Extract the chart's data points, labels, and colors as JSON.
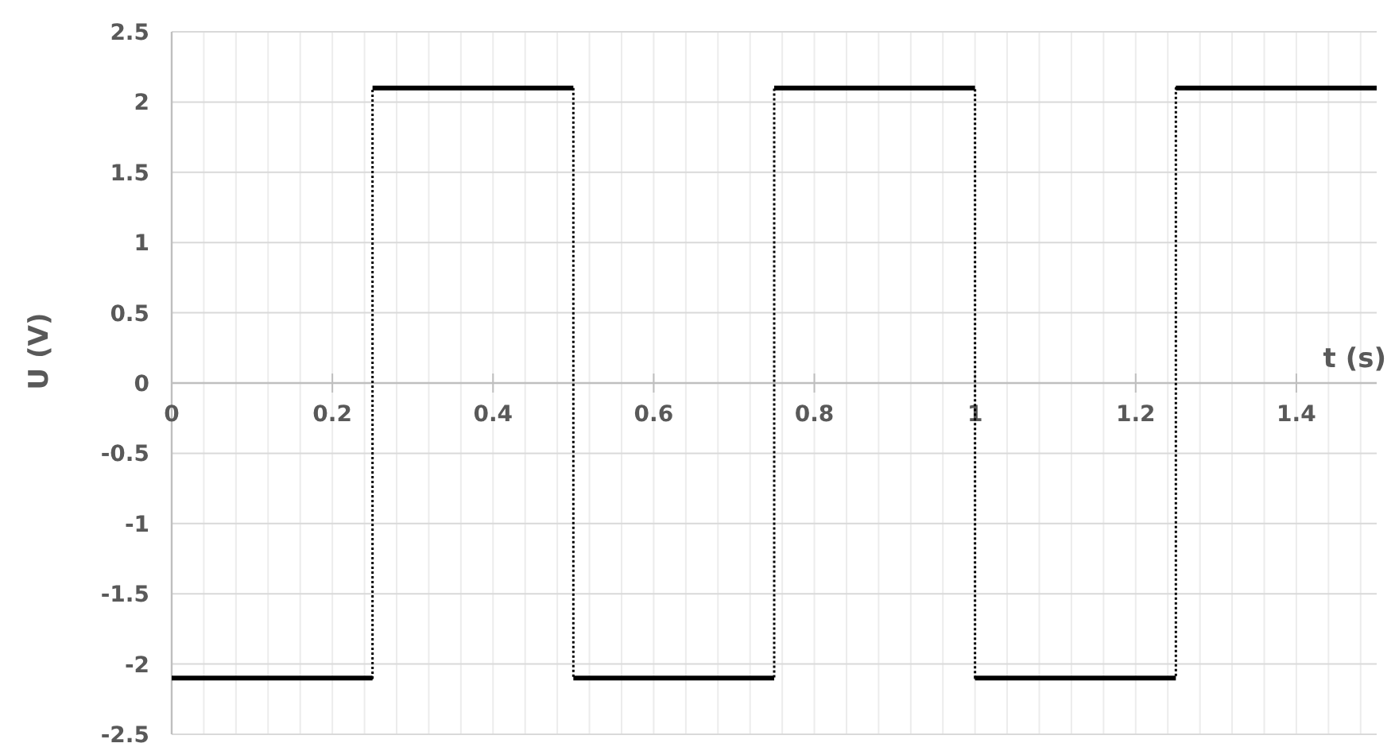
{
  "chart_data": {
    "type": "line",
    "xlabel": "t (s)",
    "ylabel": "U (V)",
    "xlim": [
      0,
      1.5
    ],
    "ylim": [
      -2.5,
      2.5
    ],
    "xticks": [
      0,
      {
        "value": 0.04,
        "label": null
      },
      {
        "value": 0.08,
        "label": null
      },
      {
        "value": 0.12,
        "label": null
      },
      {
        "value": 0.16,
        "label": null
      },
      0.2,
      {
        "value": 0.24,
        "label": null
      },
      {
        "value": 0.28,
        "label": null
      },
      {
        "value": 0.32,
        "label": null
      },
      {
        "value": 0.36,
        "label": null
      },
      0.4,
      {
        "value": 0.44,
        "label": null
      },
      {
        "value": 0.48,
        "label": null
      },
      {
        "value": 0.52,
        "label": null
      },
      {
        "value": 0.56,
        "label": null
      },
      0.6,
      {
        "value": 0.64,
        "label": null
      },
      {
        "value": 0.68,
        "label": null
      },
      {
        "value": 0.72,
        "label": null
      },
      {
        "value": 0.76,
        "label": null
      },
      0.8,
      {
        "value": 0.84,
        "label": null
      },
      {
        "value": 0.88,
        "label": null
      },
      {
        "value": 0.92,
        "label": null
      },
      {
        "value": 0.96,
        "label": null
      },
      1,
      {
        "value": 1.04,
        "label": null
      },
      {
        "value": 1.08,
        "label": null
      },
      {
        "value": 1.12,
        "label": null
      },
      {
        "value": 1.16,
        "label": null
      },
      1.2,
      {
        "value": 1.24,
        "label": null
      },
      {
        "value": 1.28,
        "label": null
      },
      {
        "value": 1.32,
        "label": null
      },
      {
        "value": 1.36,
        "label": null
      },
      1.4,
      {
        "value": 1.44,
        "label": null
      },
      {
        "value": 1.48,
        "label": null
      }
    ],
    "yticks": [
      -2.5,
      -2,
      -1.5,
      -1,
      -0.5,
      0,
      0.5,
      1,
      1.5,
      2,
      2.5
    ],
    "grid": true,
    "marker": "none",
    "series": [
      {
        "type": "step",
        "color": "#000000",
        "line_style": "dotted",
        "x": [
          0,
          0.25,
          0.5,
          0.75,
          1,
          1.25,
          1.5
        ],
        "values": [
          -2.1,
          2.1,
          -2.1,
          2.1,
          -2.1,
          2.1,
          2.1
        ]
      },
      {
        "color": "#000000",
        "line_style": "solid",
        "x": [
          0,
          0.25
        ],
        "values": [
          -2.1,
          -2.1
        ]
      },
      {
        "color": "#000000",
        "line_style": "solid",
        "x": [
          0.25,
          0.5
        ],
        "values": [
          2.1,
          2.1
        ]
      },
      {
        "color": "#000000",
        "line_style": "solid",
        "x": [
          0.5,
          0.75
        ],
        "values": [
          -2.1,
          -2.1
        ]
      },
      {
        "color": "#000000",
        "line_style": "solid",
        "x": [
          0.75,
          1
        ],
        "values": [
          2.1,
          2.1
        ]
      },
      {
        "color": "#000000",
        "line_style": "solid",
        "x": [
          1,
          1.25
        ],
        "values": [
          -2.1,
          -2.1
        ]
      },
      {
        "color": "#000000",
        "line_style": "solid",
        "x": [
          1.25,
          1.5
        ],
        "values": [
          2.1,
          2.1
        ]
      }
    ]
  }
}
